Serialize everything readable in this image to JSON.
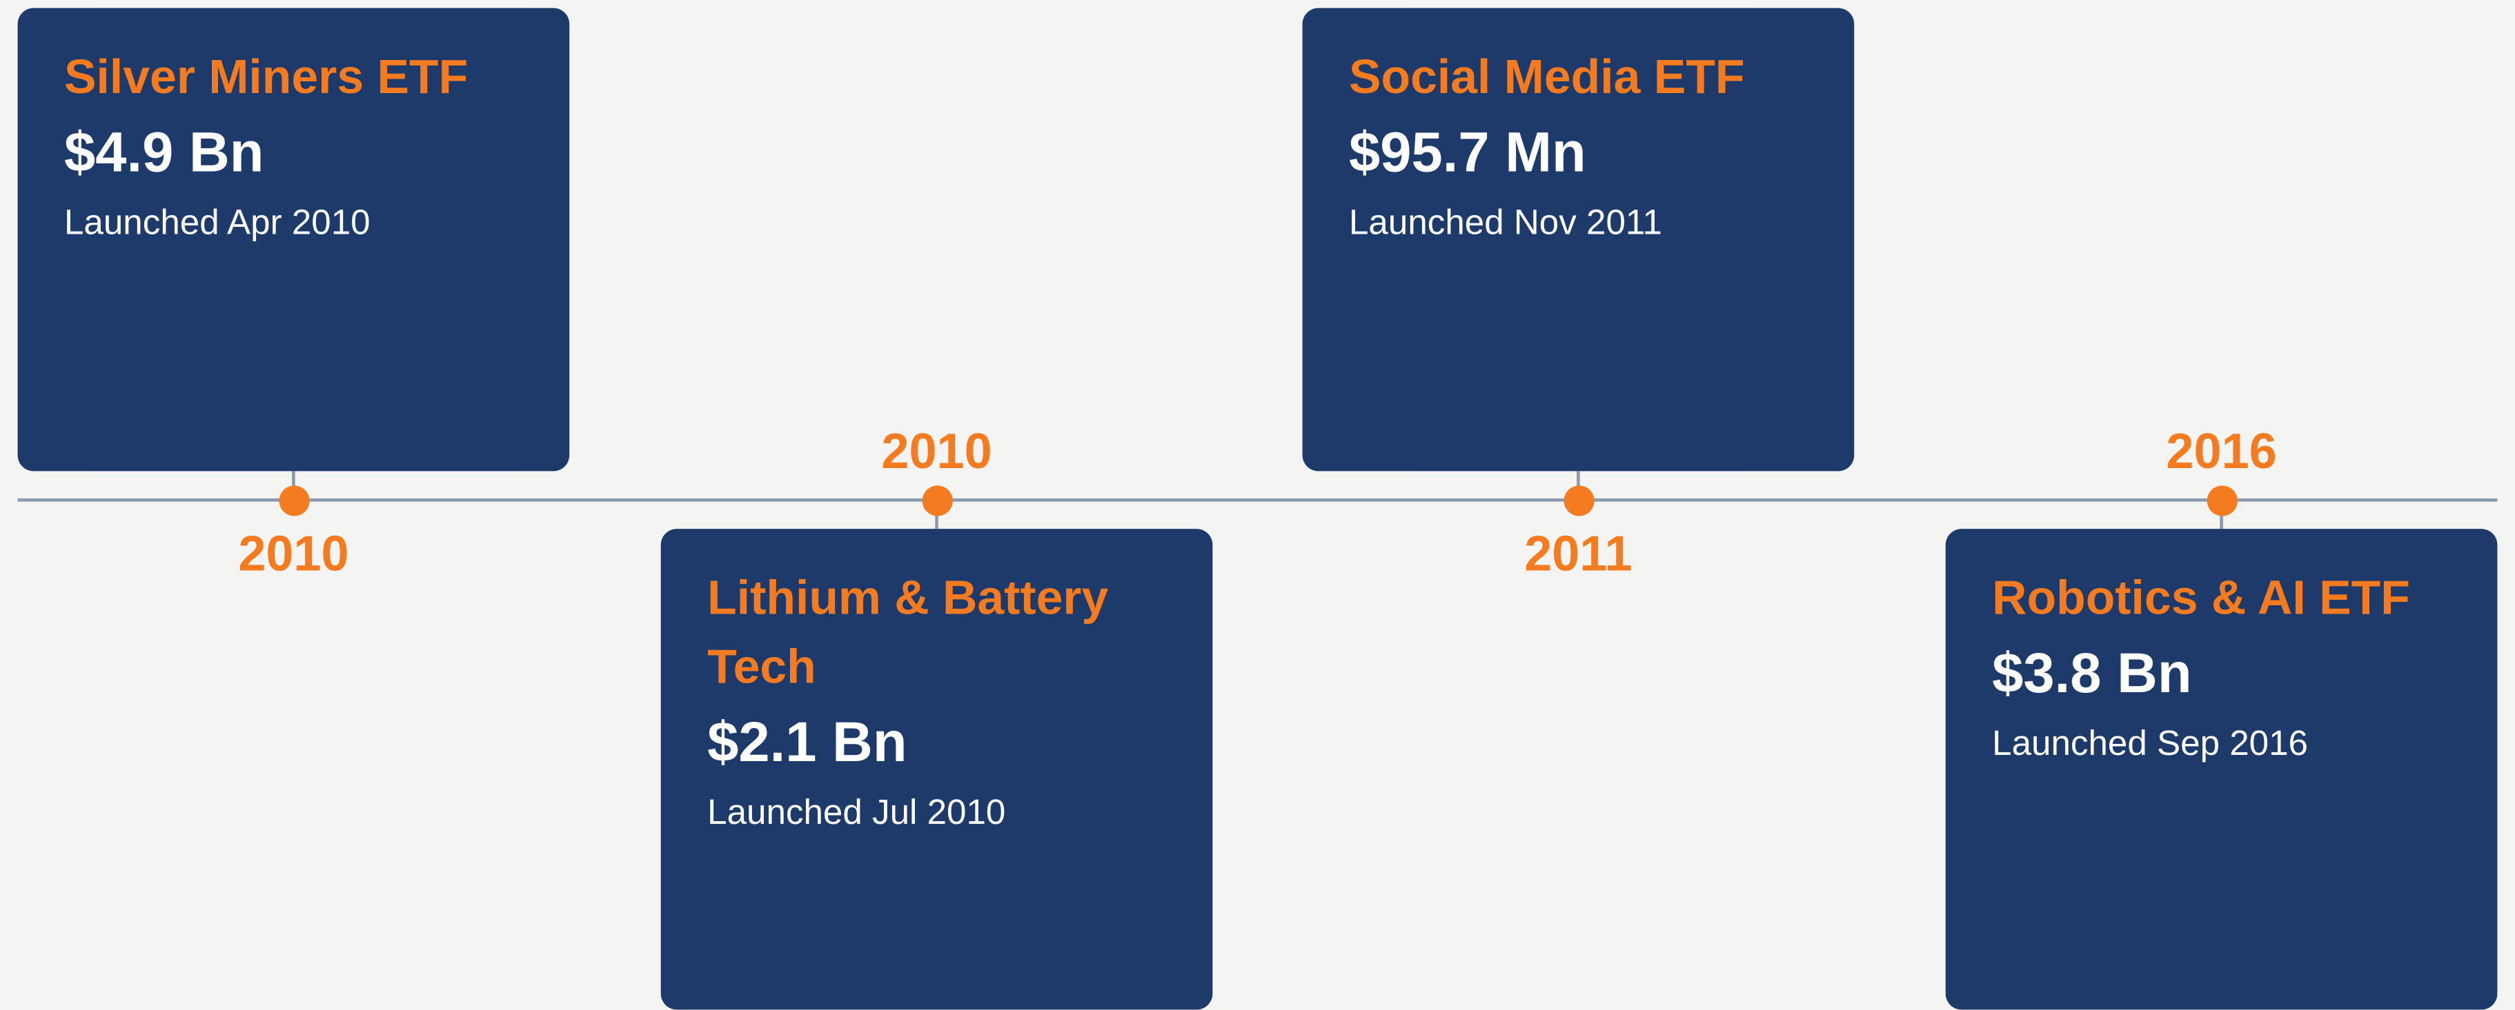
{
  "items": [
    {
      "title": "Silver Miners ETF",
      "value": "$4.9 Bn",
      "launched": "Launched Apr 2010",
      "year": "2010"
    },
    {
      "title": "Lithium & Battery Tech",
      "value": "$2.1 Bn",
      "launched": "Launched Jul 2010",
      "year": "2010"
    },
    {
      "title": "Social Media ETF",
      "value": "$95.7 Mn",
      "launched": "Launched Nov 2011",
      "year": "2011"
    },
    {
      "title": "Robotics & AI ETF",
      "value": "$3.8 Bn",
      "launched": "Launched Sep 2016",
      "year": "2016"
    }
  ]
}
